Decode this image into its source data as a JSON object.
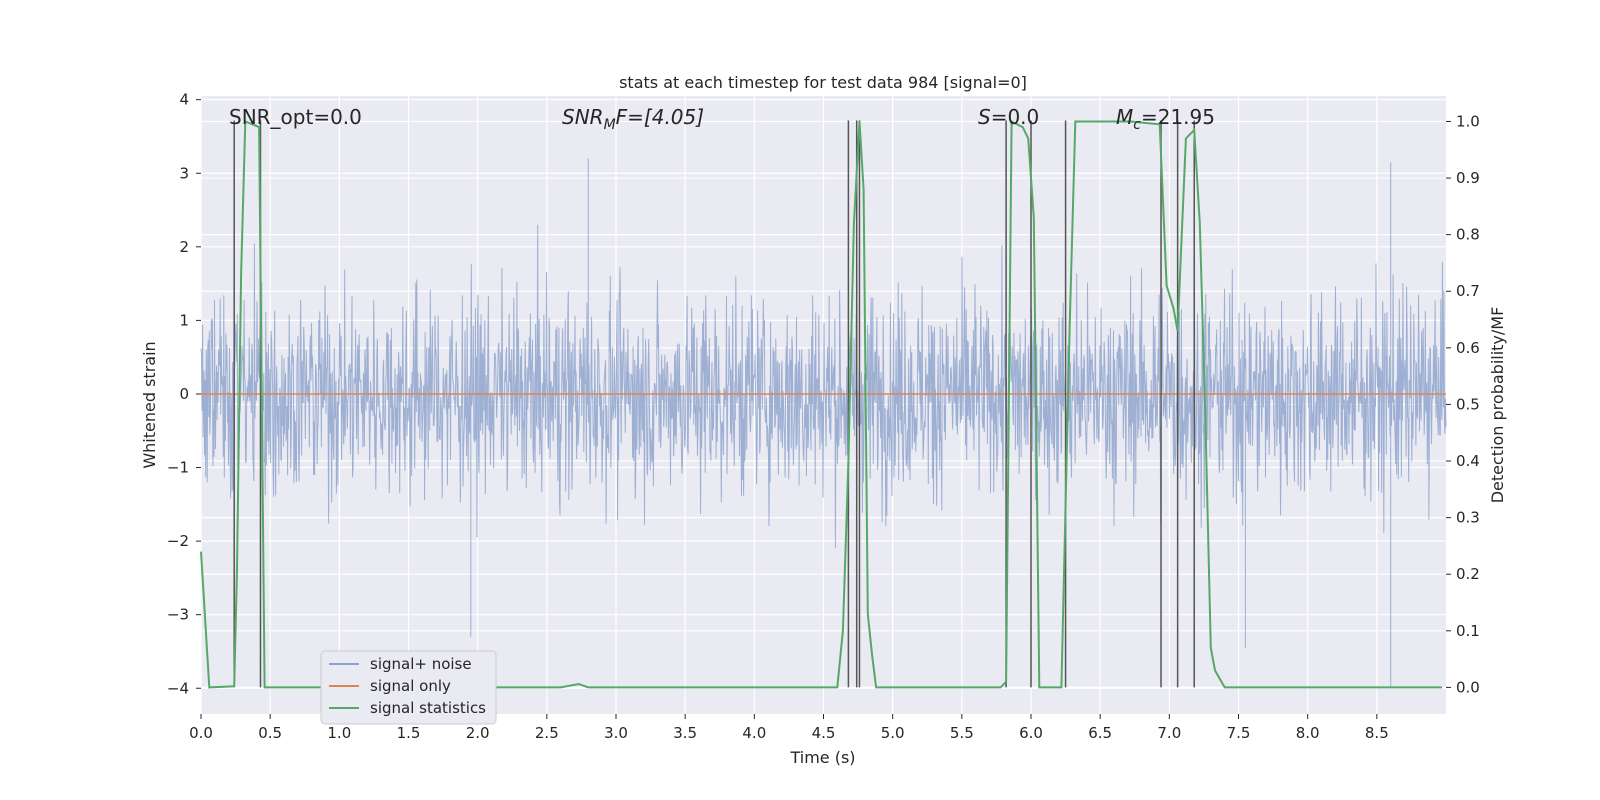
{
  "chart_data": {
    "type": "line",
    "title": "stats at each timestep for test data 984 [signal=0]",
    "xlabel": "Time (s)",
    "ylabel_left": "Whitened strain",
    "ylabel_right": "Detection probability/MF",
    "xlim": [
      0.0,
      9.0
    ],
    "ylim_left": [
      -4.35,
      4.05
    ],
    "ylim_right": [
      -0.047,
      1.045
    ],
    "x_ticks": [
      0.0,
      0.5,
      1.0,
      1.5,
      2.0,
      2.5,
      3.0,
      3.5,
      4.0,
      4.5,
      5.0,
      5.5,
      6.0,
      6.5,
      7.0,
      7.5,
      8.0,
      8.5
    ],
    "x_tick_labels": [
      "0.0",
      "0.5",
      "1.0",
      "1.5",
      "2.0",
      "2.5",
      "3.0",
      "3.5",
      "4.0",
      "4.5",
      "5.0",
      "5.5",
      "6.0",
      "6.5",
      "7.0",
      "7.5",
      "8.0",
      "8.5"
    ],
    "y_left_ticks": [
      4,
      3,
      2,
      1,
      0,
      -1,
      -2,
      -3,
      -4
    ],
    "y_left_tick_labels": [
      "4",
      "3",
      "2",
      "1",
      "0",
      "−1",
      "−2",
      "−3",
      "−4"
    ],
    "y_right_ticks": [
      1.0,
      0.9,
      0.8,
      0.7,
      0.6,
      0.5,
      0.4,
      0.3,
      0.2,
      0.1,
      0.0
    ],
    "y_right_tick_labels": [
      "1.0",
      "0.9",
      "0.8",
      "0.7",
      "0.6",
      "0.5",
      "0.4",
      "0.3",
      "0.2",
      "0.1",
      "0.0"
    ],
    "annotations": {
      "snr_opt": "SNR_opt=0.0",
      "snr_mf_prefix": "SNR",
      "snr_mf_sub": "M",
      "snr_mf_suffix": "F=[4.05]",
      "s_label": "S",
      "s_value": "=0.0",
      "mc_label": "M",
      "mc_sub": "c",
      "mc_value": "=21.95"
    },
    "legend": {
      "position": "lower-left",
      "entries": [
        "signal+ noise",
        "signal only",
        "signal statistics"
      ]
    },
    "colors": {
      "noise": "#8fa4cc",
      "signal_only": "#dd8452",
      "statistics": "#55a868",
      "markers": "#555555",
      "plot_bg": "#eaeaf2",
      "grid": "#ffffff"
    },
    "series": [
      {
        "name": "signal+ noise",
        "envelope": {
          "x_range": [
            0.0,
            9.0
          ],
          "typical_band": [
            -1.6,
            1.5
          ],
          "typical_peak": [
            -2.4,
            2.4
          ],
          "extreme_peak": [
            -4.0,
            3.3
          ],
          "notable_spikes": [
            [
              2.8,
              3.2
            ],
            [
              8.6,
              3.15
            ],
            [
              8.6,
              -4.0
            ],
            [
              1.95,
              -3.3
            ],
            [
              7.55,
              -3.45
            ]
          ]
        }
      },
      {
        "name": "signal only",
        "x": [
          0.0,
          9.0
        ],
        "y": [
          0.0,
          0.0
        ]
      },
      {
        "name": "signal statistics",
        "axis": "right",
        "x": [
          0.0,
          0.06,
          0.24,
          0.26,
          0.29,
          0.32,
          0.36,
          0.42,
          0.46,
          0.5,
          2.6,
          2.73,
          2.8,
          3.0,
          4.6,
          4.64,
          4.68,
          4.72,
          4.76,
          4.79,
          4.82,
          4.85,
          4.88,
          5.0,
          5.78,
          5.82,
          5.86,
          5.94,
          5.98,
          6.02,
          6.06,
          6.14,
          6.22,
          6.28,
          6.32,
          6.5,
          6.72,
          6.93,
          6.98,
          7.03,
          7.06,
          7.12,
          7.18,
          7.22,
          7.26,
          7.3,
          7.33,
          7.4,
          8.97
        ],
        "y": [
          0.24,
          0.0,
          0.002,
          0.21,
          0.73,
          1.0,
          0.996,
          0.99,
          0.0,
          0.0,
          0.0,
          0.006,
          0.0,
          0.0,
          0.0,
          0.1,
          0.4,
          0.82,
          1.0,
          0.88,
          0.13,
          0.06,
          0.0,
          0.0,
          0.0,
          0.01,
          1.0,
          0.99,
          0.97,
          0.83,
          0.0,
          0.0,
          0.0,
          0.64,
          1.0,
          1.0,
          1.0,
          0.995,
          0.71,
          0.67,
          0.63,
          0.97,
          0.985,
          0.82,
          0.48,
          0.07,
          0.03,
          0.0,
          0.0
        ]
      }
    ],
    "marker_lines_x": [
      0.24,
      0.43,
      4.68,
      4.74,
      4.76,
      5.82,
      6.0,
      6.25,
      6.94,
      7.06,
      7.18
    ]
  }
}
